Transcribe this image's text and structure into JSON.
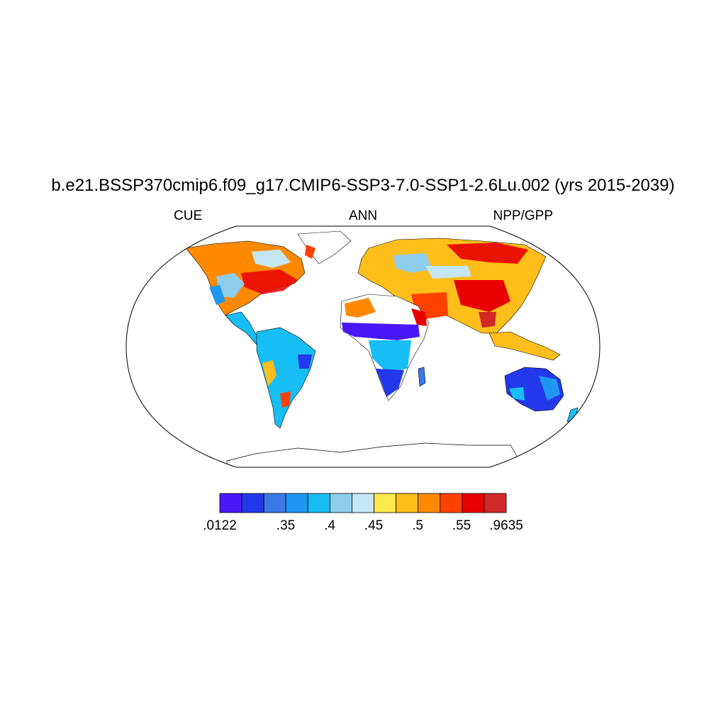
{
  "title": "b.e21.BSSP370cmip6.f09_g17.CMIP6-SSP3-7.0-SSP1-2.6Lu.002 (yrs 2015-2039)",
  "left_label": "CUE",
  "center_label": "ANN",
  "right_label": "NPP/GPP",
  "colorbar": {
    "colors": [
      "#4a18f7",
      "#2338eb",
      "#3b78e8",
      "#1f96f2",
      "#17bdf5",
      "#8ecdee",
      "#c5e6f5",
      "#ffe74e",
      "#ffbe1a",
      "#ff8a00",
      "#ff4100",
      "#e80000",
      "#d32828"
    ],
    "tick_labels": [
      ".0122",
      ".35",
      ".4",
      ".45",
      ".5",
      ".55",
      ".9635"
    ]
  }
}
